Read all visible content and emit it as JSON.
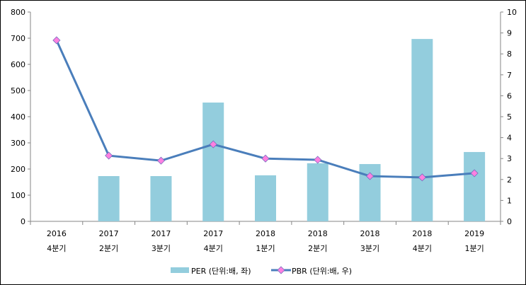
{
  "chart_data": {
    "type": "bar+line",
    "categories": [
      [
        "2016",
        "4분기"
      ],
      [
        "2017",
        "2분기"
      ],
      [
        "2017",
        "3분기"
      ],
      [
        "2017",
        "4분기"
      ],
      [
        "2018",
        "1분기"
      ],
      [
        "2018",
        "2분기"
      ],
      [
        "2018",
        "3분기"
      ],
      [
        "2018",
        "4분기"
      ],
      [
        "2019",
        "1분기"
      ]
    ],
    "series": [
      {
        "name": "PER (단위:배, 좌)",
        "type": "bar",
        "axis": "left",
        "color": "#93cddd",
        "values": [
          null,
          173,
          173,
          454,
          176,
          222,
          219,
          697,
          265
        ]
      },
      {
        "name": "PBR (단위:배, 우)",
        "type": "line",
        "axis": "right",
        "color": "#4a7ebb",
        "marker_color": "#ff80e0",
        "values": [
          8.65,
          3.14,
          2.9,
          3.68,
          3.0,
          2.94,
          2.16,
          2.1,
          2.3
        ]
      }
    ],
    "yleft": {
      "lim": [
        0,
        800
      ],
      "ticks": [
        0,
        100,
        200,
        300,
        400,
        500,
        600,
        700,
        800
      ]
    },
    "yright": {
      "lim": [
        0,
        10
      ],
      "ticks": [
        0,
        1,
        2,
        3,
        4,
        5,
        6,
        7,
        8,
        9,
        10
      ]
    },
    "legend": "bottom",
    "grid": false
  }
}
